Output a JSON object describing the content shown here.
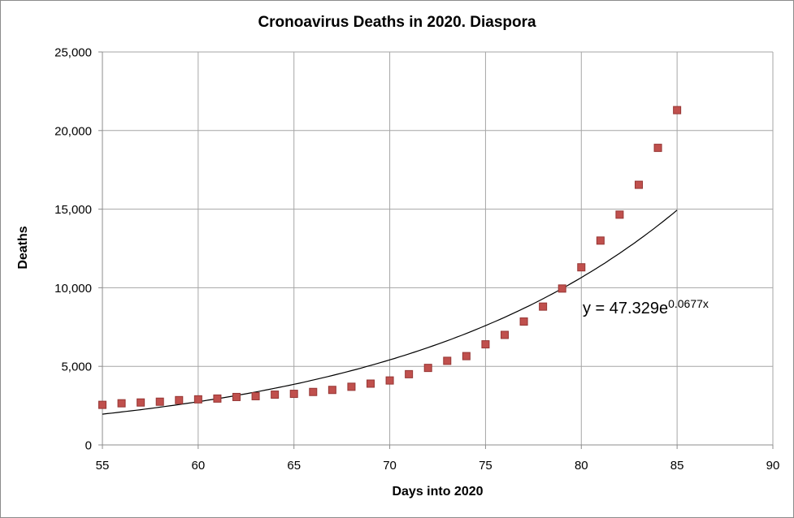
{
  "page": {
    "background": "#ffffff",
    "border_color": "#8c8c8c"
  },
  "style": {
    "gridline_color": "#a6a6a6",
    "axis_color": "#8c8c8c",
    "text_color": "#000000",
    "marker_fill": "#c0504d",
    "marker_border": "#963634",
    "trendline_color": "#000000"
  },
  "chart_data": {
    "type": "scatter",
    "title": "Cronoavirus Deaths in 2020. Diaspora",
    "xlabel": "Days into 2020",
    "ylabel": "Deaths",
    "xlim": [
      55,
      90
    ],
    "ylim": [
      0,
      25000
    ],
    "grid": true,
    "legend": false,
    "x_ticks": [
      55,
      60,
      65,
      70,
      75,
      80,
      85,
      90
    ],
    "x_tick_labels": [
      "55",
      "60",
      "65",
      "70",
      "75",
      "80",
      "85",
      "90"
    ],
    "y_ticks": [
      0,
      5000,
      10000,
      15000,
      20000,
      25000
    ],
    "y_tick_labels": [
      "0",
      "5,000",
      "10,000",
      "15,000",
      "20,000",
      "25,000"
    ],
    "series": [
      {
        "name": "deaths",
        "marker": "square",
        "marker_size": 9,
        "color": "#c0504d",
        "border_color": "#963634",
        "x": [
          55,
          56,
          57,
          58,
          59,
          60,
          61,
          62,
          63,
          64,
          65,
          66,
          67,
          68,
          69,
          70,
          71,
          72,
          73,
          74,
          75,
          76,
          77,
          78,
          79,
          80,
          81,
          82,
          83,
          84,
          85
        ],
        "y": [
          2550,
          2650,
          2700,
          2750,
          2850,
          2900,
          2950,
          3050,
          3100,
          3200,
          3250,
          3370,
          3500,
          3700,
          3900,
          4100,
          4500,
          4900,
          5350,
          5650,
          6400,
          7000,
          7850,
          8800,
          9950,
          11300,
          13000,
          14650,
          16550,
          18900,
          21300
        ]
      }
    ],
    "trendline": {
      "type": "exponential",
      "a": 47.329,
      "b": 0.0677,
      "x_range": [
        55,
        85
      ],
      "color": "#000000",
      "equation_base": "y = 47.329e",
      "equation_exponent": "0.0677x"
    }
  }
}
